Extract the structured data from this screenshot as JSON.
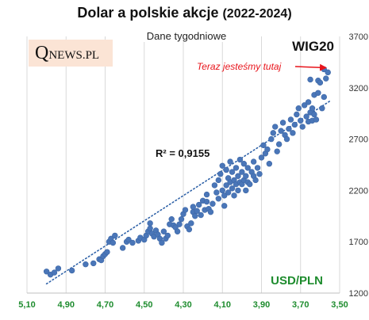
{
  "chart_data": {
    "type": "scatter",
    "title": "Dolar a polskie akcje",
    "title_years": "(2022-2024)",
    "subtitle": "Dane tygodniowe",
    "xlabel": "USD/PLN",
    "ylabel": "WIG20",
    "x_axis_reversed": true,
    "xlim": [
      5.1,
      3.5
    ],
    "ylim": [
      1200,
      3700
    ],
    "x_ticks": [
      "5,10",
      "4,90",
      "4,70",
      "4,50",
      "4,30",
      "4,10",
      "3,90",
      "3,70",
      "3,50"
    ],
    "y_ticks": [
      "1200",
      "1700",
      "2200",
      "2700",
      "3200",
      "3700"
    ],
    "grid": "vertical",
    "trendline": {
      "style": "dotted",
      "r_squared_label": "R² = 0,9155",
      "from": [
        5.0,
        1290
      ],
      "to": [
        3.55,
        3070
      ]
    },
    "annotation": {
      "text": "Teraz jesteśmy tutaj",
      "arrow_to": [
        3.56,
        3380
      ],
      "color": "#e8141b"
    },
    "marker_color": "#4a76b8",
    "trend_color": "#2f62a8",
    "points": [
      [
        5.0,
        1410
      ],
      [
        4.98,
        1380
      ],
      [
        4.96,
        1400
      ],
      [
        4.94,
        1440
      ],
      [
        4.87,
        1420
      ],
      [
        4.8,
        1480
      ],
      [
        4.76,
        1490
      ],
      [
        4.73,
        1530
      ],
      [
        4.72,
        1520
      ],
      [
        4.71,
        1560
      ],
      [
        4.7,
        1580
      ],
      [
        4.69,
        1600
      ],
      [
        4.68,
        1700
      ],
      [
        4.67,
        1730
      ],
      [
        4.66,
        1690
      ],
      [
        4.65,
        1760
      ],
      [
        4.61,
        1640
      ],
      [
        4.59,
        1700
      ],
      [
        4.58,
        1720
      ],
      [
        4.56,
        1690
      ],
      [
        4.53,
        1710
      ],
      [
        4.52,
        1740
      ],
      [
        4.5,
        1720
      ],
      [
        4.49,
        1760
      ],
      [
        4.48,
        1800
      ],
      [
        4.47,
        1830
      ],
      [
        4.47,
        1880
      ],
      [
        4.46,
        1780
      ],
      [
        4.45,
        1750
      ],
      [
        4.44,
        1810
      ],
      [
        4.43,
        1770
      ],
      [
        4.42,
        1730
      ],
      [
        4.41,
        1690
      ],
      [
        4.4,
        1800
      ],
      [
        4.39,
        1730
      ],
      [
        4.38,
        1760
      ],
      [
        4.37,
        1870
      ],
      [
        4.36,
        1920
      ],
      [
        4.35,
        1860
      ],
      [
        4.34,
        1840
      ],
      [
        4.33,
        1800
      ],
      [
        4.32,
        1870
      ],
      [
        4.31,
        1920
      ],
      [
        4.3,
        1970
      ],
      [
        4.29,
        2010
      ],
      [
        4.28,
        1850
      ],
      [
        4.27,
        1820
      ],
      [
        4.26,
        1880
      ],
      [
        4.25,
        1990
      ],
      [
        4.25,
        2040
      ],
      [
        4.24,
        1950
      ],
      [
        4.23,
        2000
      ],
      [
        4.22,
        2060
      ],
      [
        4.21,
        1960
      ],
      [
        4.2,
        2100
      ],
      [
        4.19,
        2010
      ],
      [
        4.18,
        2160
      ],
      [
        4.18,
        2090
      ],
      [
        4.17,
        2020
      ],
      [
        4.16,
        1990
      ],
      [
        4.15,
        2070
      ],
      [
        4.14,
        2250
      ],
      [
        4.13,
        2180
      ],
      [
        4.12,
        2120
      ],
      [
        4.12,
        2300
      ],
      [
        4.11,
        2360
      ],
      [
        4.1,
        2200
      ],
      [
        4.1,
        2440
      ],
      [
        4.09,
        2050
      ],
      [
        4.09,
        2150
      ],
      [
        4.08,
        2250
      ],
      [
        4.08,
        2400
      ],
      [
        4.07,
        2320
      ],
      [
        4.07,
        2180
      ],
      [
        4.06,
        2280
      ],
      [
        4.06,
        2480
      ],
      [
        4.05,
        2220
      ],
      [
        4.05,
        2380
      ],
      [
        4.04,
        2300
      ],
      [
        4.04,
        2150
      ],
      [
        4.03,
        2420
      ],
      [
        4.03,
        2260
      ],
      [
        4.02,
        2340
      ],
      [
        4.02,
        2200
      ],
      [
        4.01,
        2500
      ],
      [
        4.01,
        2280
      ],
      [
        4.0,
        2380
      ],
      [
        4.0,
        2260
      ],
      [
        3.99,
        2300
      ],
      [
        3.99,
        2460
      ],
      [
        3.98,
        2340
      ],
      [
        3.98,
        2200
      ],
      [
        3.97,
        2420
      ],
      [
        3.97,
        2280
      ],
      [
        3.96,
        2260
      ],
      [
        3.95,
        2380
      ],
      [
        3.94,
        2340
      ],
      [
        3.94,
        2480
      ],
      [
        3.93,
        2300
      ],
      [
        3.92,
        2420
      ],
      [
        3.91,
        2360
      ],
      [
        3.9,
        2520
      ],
      [
        3.89,
        2640
      ],
      [
        3.88,
        2560
      ],
      [
        3.87,
        2600
      ],
      [
        3.86,
        2460
      ],
      [
        3.85,
        2700
      ],
      [
        3.84,
        2760
      ],
      [
        3.83,
        2820
      ],
      [
        3.82,
        2580
      ],
      [
        3.81,
        2650
      ],
      [
        3.8,
        2780
      ],
      [
        3.79,
        2860
      ],
      [
        3.78,
        2740
      ],
      [
        3.77,
        2700
      ],
      [
        3.76,
        2800
      ],
      [
        3.75,
        2890
      ],
      [
        3.74,
        2760
      ],
      [
        3.73,
        2840
      ],
      [
        3.72,
        2940
      ],
      [
        3.71,
        3000
      ],
      [
        3.7,
        2880
      ],
      [
        3.69,
        2820
      ],
      [
        3.68,
        3030
      ],
      [
        3.67,
        2920
      ],
      [
        3.66,
        2870
      ],
      [
        3.66,
        3060
      ],
      [
        3.65,
        2960
      ],
      [
        3.65,
        3280
      ],
      [
        3.64,
        3000
      ],
      [
        3.64,
        2880
      ],
      [
        3.63,
        2940
      ],
      [
        3.63,
        3130
      ],
      [
        3.62,
        2890
      ],
      [
        3.61,
        3150
      ],
      [
        3.61,
        3270
      ],
      [
        3.6,
        3250
      ],
      [
        3.59,
        3000
      ],
      [
        3.58,
        3110
      ],
      [
        3.58,
        3380
      ],
      [
        3.57,
        3290
      ],
      [
        3.56,
        3350
      ]
    ]
  }
}
